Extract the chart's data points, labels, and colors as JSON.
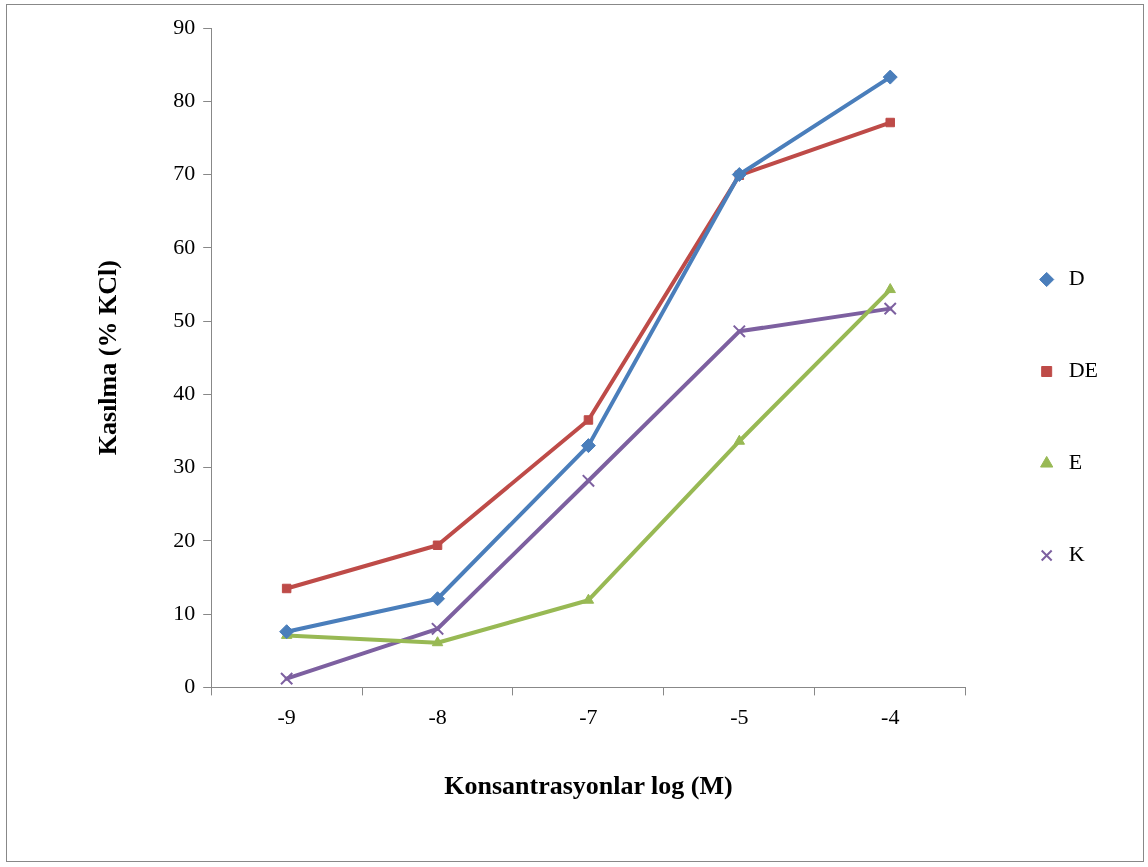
{
  "chart_data": {
    "type": "line",
    "xlabel": "Konsantrasyonlar log (M)",
    "ylabel": "Kasılma (% KCl)",
    "categories": [
      "-9",
      "-8",
      "-7",
      "-5",
      "-4"
    ],
    "ylim": [
      0,
      90
    ],
    "yticks": [
      0,
      10,
      20,
      30,
      40,
      50,
      60,
      70,
      80,
      90
    ],
    "grid": false,
    "legend": "right",
    "line_style": "solid",
    "series": [
      {
        "name": "D",
        "color": "#4a7ebb",
        "marker": "diamond",
        "values": [
          7.6,
          12.1,
          33.0,
          70.0,
          83.3
        ]
      },
      {
        "name": "DE",
        "color": "#be4b48",
        "marker": "square",
        "values": [
          13.5,
          19.4,
          36.5,
          69.9,
          77.1
        ]
      },
      {
        "name": "E",
        "color": "#98b954",
        "marker": "triangle",
        "values": [
          7.1,
          6.1,
          11.9,
          33.6,
          54.3
        ]
      },
      {
        "name": "K",
        "color": "#7d60a0",
        "marker": "cross",
        "values": [
          1.2,
          8.0,
          28.2,
          48.6,
          51.7
        ]
      }
    ]
  }
}
